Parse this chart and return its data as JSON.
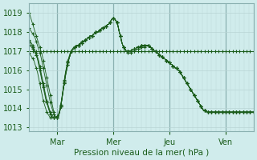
{
  "title": "",
  "xlabel": "Pression niveau de la mer( hPa )",
  "ylabel": "",
  "background_color": "#d0ecec",
  "plot_bg_color": "#d0ecec",
  "grid_color_major_x": "#8ab0b0",
  "grid_color_minor": "#b8d4d4",
  "line_color": "#1a5c1a",
  "ylim": [
    1012.8,
    1019.5
  ],
  "yticks": [
    1013,
    1014,
    1015,
    1016,
    1017,
    1018,
    1019
  ],
  "day_labels": [
    "Mar",
    "Mer",
    "Jeu",
    "Ven"
  ],
  "day_positions": [
    24,
    72,
    120,
    168
  ],
  "n_points": 193,
  "series": [
    [
      1019.0,
      1018.8,
      1018.6,
      1018.4,
      1018.2,
      1018.0,
      1017.8,
      1017.6,
      1017.4,
      1017.2,
      1017.0,
      1016.8,
      1016.5,
      1016.2,
      1015.9,
      1015.6,
      1015.3,
      1015.0,
      1014.7,
      1014.4,
      1014.1,
      1013.8,
      1013.6,
      1013.5,
      1013.5,
      1013.6,
      1013.8,
      1014.1,
      1014.5,
      1014.9,
      1015.3,
      1015.7,
      1016.0,
      1016.3,
      1016.6,
      1016.8,
      1017.0,
      1017.1,
      1017.2,
      1017.2,
      1017.3,
      1017.3,
      1017.3,
      1017.4,
      1017.4,
      1017.5,
      1017.5,
      1017.5,
      1017.6,
      1017.6,
      1017.7,
      1017.7,
      1017.8,
      1017.8,
      1017.8,
      1017.9,
      1017.9,
      1018.0,
      1018.0,
      1018.0,
      1018.1,
      1018.1,
      1018.2,
      1018.2,
      1018.2,
      1018.3,
      1018.3,
      1018.4,
      1018.4,
      1018.5,
      1018.6,
      1018.7,
      1018.7,
      1018.7,
      1018.6,
      1018.5,
      1018.3,
      1018.0,
      1017.8,
      1017.5,
      1017.3,
      1017.2,
      1017.1,
      1017.0,
      1017.0,
      1017.0,
      1017.0,
      1017.0,
      1017.1,
      1017.1,
      1017.1,
      1017.1,
      1017.2,
      1017.2,
      1017.2,
      1017.2,
      1017.3,
      1017.3,
      1017.3,
      1017.3,
      1017.3,
      1017.3,
      1017.3,
      1017.2,
      1017.2,
      1017.1,
      1017.1,
      1017.0,
      1017.0,
      1016.9,
      1016.9,
      1016.8,
      1016.8,
      1016.7,
      1016.7,
      1016.6,
      1016.6,
      1016.5,
      1016.5,
      1016.4,
      1016.4,
      1016.3,
      1016.3,
      1016.2,
      1016.2,
      1016.1,
      1016.1,
      1016.0,
      1016.0,
      1015.9,
      1015.8,
      1015.7,
      1015.6,
      1015.5,
      1015.4,
      1015.3,
      1015.2,
      1015.1,
      1015.0,
      1014.9,
      1014.8,
      1014.7,
      1014.6,
      1014.5,
      1014.4,
      1014.3,
      1014.2,
      1014.1,
      1014.0,
      1013.9,
      1013.9,
      1013.9,
      1013.8,
      1013.8,
      1013.8,
      1013.8,
      1013.8,
      1013.8,
      1013.8,
      1013.8,
      1013.8,
      1013.8,
      1013.8,
      1013.8,
      1013.8,
      1013.8,
      1013.8,
      1013.8,
      1013.8,
      1013.8,
      1013.8,
      1013.8,
      1013.8,
      1013.8,
      1013.8,
      1013.8,
      1013.8,
      1013.8,
      1013.8,
      1013.8,
      1013.8,
      1013.8,
      1013.8,
      1013.8,
      1013.8,
      1013.8,
      1013.8,
      1013.8,
      1013.8,
      1013.8,
      1013.8,
      1013.8,
      1013.8
    ],
    [
      1018.2,
      1018.1,
      1018.0,
      1017.9,
      1017.8,
      1017.7,
      1017.5,
      1017.3,
      1017.1,
      1016.9,
      1016.7,
      1016.4,
      1016.1,
      1015.8,
      1015.5,
      1015.2,
      1014.9,
      1014.6,
      1014.3,
      1014.1,
      1013.9,
      1013.7,
      1013.6,
      1013.5,
      1013.5,
      1013.6,
      1013.8,
      1014.1,
      1014.5,
      1014.9,
      1015.3,
      1015.7,
      1016.0,
      1016.3,
      1016.6,
      1016.8,
      1017.0,
      1017.1,
      1017.2,
      1017.2,
      1017.3,
      1017.3,
      1017.3,
      1017.4,
      1017.4,
      1017.5,
      1017.5,
      1017.5,
      1017.6,
      1017.6,
      1017.7,
      1017.7,
      1017.8,
      1017.8,
      1017.8,
      1017.9,
      1017.9,
      1018.0,
      1018.0,
      1018.0,
      1018.1,
      1018.1,
      1018.2,
      1018.2,
      1018.2,
      1018.3,
      1018.3,
      1018.4,
      1018.4,
      1018.5,
      1018.6,
      1018.7,
      1018.7,
      1018.7,
      1018.6,
      1018.5,
      1018.3,
      1018.0,
      1017.8,
      1017.5,
      1017.3,
      1017.2,
      1017.1,
      1017.0,
      1017.0,
      1017.0,
      1017.0,
      1017.0,
      1017.1,
      1017.1,
      1017.1,
      1017.1,
      1017.2,
      1017.2,
      1017.2,
      1017.2,
      1017.3,
      1017.3,
      1017.3,
      1017.3,
      1017.3,
      1017.3,
      1017.3,
      1017.2,
      1017.2,
      1017.1,
      1017.1,
      1017.0,
      1017.0,
      1016.9,
      1016.9,
      1016.8,
      1016.8,
      1016.7,
      1016.7,
      1016.6,
      1016.6,
      1016.5,
      1016.5,
      1016.4,
      1016.4,
      1016.3,
      1016.3,
      1016.2,
      1016.2,
      1016.1,
      1016.1,
      1016.0,
      1016.0,
      1015.9,
      1015.8,
      1015.7,
      1015.6,
      1015.5,
      1015.4,
      1015.3,
      1015.2,
      1015.1,
      1015.0,
      1014.9,
      1014.8,
      1014.7,
      1014.6,
      1014.5,
      1014.4,
      1014.3,
      1014.2,
      1014.1,
      1014.0,
      1013.9,
      1013.9,
      1013.9,
      1013.8,
      1013.8,
      1013.8,
      1013.8,
      1013.8,
      1013.8,
      1013.8,
      1013.8,
      1013.8,
      1013.8,
      1013.8,
      1013.8,
      1013.8,
      1013.8,
      1013.8,
      1013.8,
      1013.8,
      1013.8,
      1013.8,
      1013.8,
      1013.8,
      1013.8,
      1013.8,
      1013.8,
      1013.8,
      1013.8,
      1013.8,
      1013.8,
      1013.8,
      1013.8,
      1013.8,
      1013.8,
      1013.8,
      1013.8,
      1013.8,
      1013.8,
      1013.8,
      1013.8,
      1013.8,
      1013.8,
      1013.8
    ],
    [
      1017.5,
      1017.4,
      1017.3,
      1017.2,
      1017.1,
      1017.0,
      1016.9,
      1016.7,
      1016.5,
      1016.2,
      1015.9,
      1015.6,
      1015.3,
      1015.0,
      1014.7,
      1014.4,
      1014.2,
      1014.0,
      1013.8,
      1013.7,
      1013.6,
      1013.5,
      1013.5,
      1013.5,
      1013.5,
      1013.6,
      1013.8,
      1014.2,
      1014.6,
      1015.0,
      1015.4,
      1015.8,
      1016.1,
      1016.4,
      1016.6,
      1016.8,
      1017.0,
      1017.1,
      1017.1,
      1017.2,
      1017.2,
      1017.3,
      1017.3,
      1017.3,
      1017.4,
      1017.4,
      1017.5,
      1017.5,
      1017.6,
      1017.6,
      1017.7,
      1017.7,
      1017.8,
      1017.8,
      1017.8,
      1017.9,
      1017.9,
      1018.0,
      1018.0,
      1018.0,
      1018.1,
      1018.1,
      1018.2,
      1018.2,
      1018.2,
      1018.3,
      1018.3,
      1018.4,
      1018.4,
      1018.5,
      1018.6,
      1018.7,
      1018.7,
      1018.7,
      1018.6,
      1018.5,
      1018.3,
      1018.0,
      1017.8,
      1017.5,
      1017.3,
      1017.2,
      1017.1,
      1017.0,
      1017.0,
      1017.0,
      1017.0,
      1017.0,
      1017.1,
      1017.1,
      1017.1,
      1017.1,
      1017.2,
      1017.2,
      1017.2,
      1017.2,
      1017.3,
      1017.3,
      1017.3,
      1017.3,
      1017.3,
      1017.3,
      1017.3,
      1017.2,
      1017.2,
      1017.1,
      1017.1,
      1017.0,
      1017.0,
      1016.9,
      1016.9,
      1016.8,
      1016.8,
      1016.7,
      1016.7,
      1016.6,
      1016.6,
      1016.5,
      1016.5,
      1016.4,
      1016.4,
      1016.3,
      1016.3,
      1016.2,
      1016.2,
      1016.1,
      1016.1,
      1016.0,
      1016.0,
      1015.9,
      1015.8,
      1015.7,
      1015.6,
      1015.5,
      1015.4,
      1015.3,
      1015.2,
      1015.1,
      1015.0,
      1014.9,
      1014.8,
      1014.7,
      1014.6,
      1014.5,
      1014.4,
      1014.3,
      1014.2,
      1014.1,
      1014.0,
      1013.9,
      1013.9,
      1013.9,
      1013.8,
      1013.8,
      1013.8,
      1013.8,
      1013.8,
      1013.8,
      1013.8,
      1013.8,
      1013.8,
      1013.8,
      1013.8,
      1013.8,
      1013.8,
      1013.8,
      1013.8,
      1013.8,
      1013.8,
      1013.8,
      1013.8,
      1013.8,
      1013.8,
      1013.8,
      1013.8,
      1013.8,
      1013.8,
      1013.8,
      1013.8,
      1013.8,
      1013.8,
      1013.8,
      1013.8,
      1013.8,
      1013.8,
      1013.8,
      1013.8,
      1013.8,
      1013.8,
      1013.8,
      1013.8,
      1013.8,
      1013.8
    ],
    [
      1017.0,
      1017.0,
      1017.0,
      1017.0,
      1017.0,
      1017.0,
      1017.0,
      1017.0,
      1017.0,
      1017.0,
      1017.0,
      1017.0,
      1017.0,
      1017.0,
      1017.0,
      1017.0,
      1017.0,
      1017.0,
      1017.0,
      1017.0,
      1017.0,
      1017.0,
      1017.0,
      1017.0,
      1017.0,
      1017.0,
      1017.0,
      1017.0,
      1017.0,
      1017.0,
      1017.0,
      1017.0,
      1017.0,
      1017.0,
      1017.0,
      1017.0,
      1017.0,
      1017.0,
      1017.0,
      1017.0,
      1017.0,
      1017.0,
      1017.0,
      1017.0,
      1017.0,
      1017.0,
      1017.0,
      1017.0,
      1017.0,
      1017.0,
      1017.0,
      1017.0,
      1017.0,
      1017.0,
      1017.0,
      1017.0,
      1017.0,
      1017.0,
      1017.0,
      1017.0,
      1017.0,
      1017.0,
      1017.0,
      1017.0,
      1017.0,
      1017.0,
      1017.0,
      1017.0,
      1017.0,
      1017.0,
      1017.0,
      1017.0,
      1017.0,
      1017.0,
      1017.0,
      1017.0,
      1017.0,
      1017.0,
      1017.0,
      1017.0,
      1017.0,
      1017.0,
      1017.0,
      1017.0,
      1017.0,
      1017.0,
      1017.0,
      1017.0,
      1017.0,
      1017.0,
      1017.0,
      1017.0,
      1017.0,
      1017.0,
      1017.0,
      1017.0,
      1017.0,
      1017.0,
      1017.0,
      1017.0,
      1017.0,
      1017.0,
      1017.0,
      1017.0,
      1017.0,
      1017.0,
      1017.0,
      1017.0,
      1017.0,
      1017.0,
      1017.0,
      1017.0,
      1017.0,
      1017.0,
      1017.0,
      1017.0,
      1017.0,
      1017.0,
      1017.0,
      1017.0,
      1017.0,
      1017.0,
      1017.0,
      1017.0,
      1017.0,
      1017.0,
      1017.0,
      1017.0,
      1017.0,
      1017.0,
      1017.0,
      1017.0,
      1017.0,
      1017.0,
      1017.0,
      1017.0,
      1017.0,
      1017.0,
      1017.0,
      1017.0,
      1017.0,
      1017.0,
      1017.0,
      1017.0,
      1017.0,
      1017.0,
      1017.0,
      1017.0,
      1017.0,
      1017.0,
      1017.0,
      1017.0,
      1017.0,
      1017.0,
      1017.0,
      1017.0,
      1017.0,
      1017.0,
      1017.0,
      1017.0,
      1017.0,
      1017.0,
      1017.0,
      1017.0,
      1017.0,
      1017.0,
      1017.0,
      1017.0,
      1017.0,
      1017.0,
      1017.0,
      1017.0,
      1017.0,
      1017.0,
      1017.0,
      1017.0,
      1017.0,
      1017.0,
      1017.0,
      1017.0,
      1017.0,
      1017.0,
      1017.0,
      1017.0,
      1017.0,
      1017.0,
      1017.0,
      1017.0,
      1017.0,
      1017.0,
      1017.0,
      1017.0,
      1017.0
    ],
    [
      1017.3,
      1017.3,
      1017.2,
      1017.1,
      1017.0,
      1016.9,
      1016.8,
      1016.6,
      1016.4,
      1016.1,
      1015.8,
      1015.5,
      1015.2,
      1014.9,
      1014.6,
      1014.3,
      1014.1,
      1013.9,
      1013.7,
      1013.6,
      1013.5,
      1013.5,
      1013.5,
      1013.5,
      1013.6,
      1013.7,
      1013.9,
      1014.2,
      1014.6,
      1015.0,
      1015.4,
      1015.8,
      1016.1,
      1016.4,
      1016.6,
      1016.8,
      1017.0,
      1017.1,
      1017.1,
      1017.2,
      1017.2,
      1017.3,
      1017.3,
      1017.3,
      1017.4,
      1017.4,
      1017.5,
      1017.5,
      1017.6,
      1017.6,
      1017.7,
      1017.7,
      1017.8,
      1017.8,
      1017.8,
      1017.9,
      1017.9,
      1018.0,
      1018.0,
      1018.0,
      1018.1,
      1018.1,
      1018.2,
      1018.2,
      1018.2,
      1018.3,
      1018.3,
      1018.4,
      1018.4,
      1018.5,
      1018.6,
      1018.7,
      1018.7,
      1018.7,
      1018.6,
      1018.5,
      1018.3,
      1018.0,
      1017.8,
      1017.5,
      1017.3,
      1017.2,
      1017.1,
      1017.0,
      1016.9,
      1016.9,
      1016.9,
      1016.9,
      1017.0,
      1017.0,
      1017.0,
      1017.0,
      1017.1,
      1017.1,
      1017.1,
      1017.1,
      1017.2,
      1017.2,
      1017.2,
      1017.2,
      1017.3,
      1017.3,
      1017.3,
      1017.2,
      1017.2,
      1017.1,
      1017.1,
      1017.0,
      1017.0,
      1016.9,
      1016.9,
      1016.8,
      1016.8,
      1016.7,
      1016.7,
      1016.6,
      1016.6,
      1016.5,
      1016.5,
      1016.4,
      1016.4,
      1016.3,
      1016.3,
      1016.2,
      1016.2,
      1016.1,
      1016.1,
      1016.0,
      1016.0,
      1015.9,
      1015.8,
      1015.7,
      1015.6,
      1015.5,
      1015.4,
      1015.3,
      1015.2,
      1015.1,
      1015.0,
      1014.9,
      1014.8,
      1014.7,
      1014.6,
      1014.5,
      1014.4,
      1014.3,
      1014.2,
      1014.1,
      1014.0,
      1013.9,
      1013.9,
      1013.9,
      1013.8,
      1013.8,
      1013.8,
      1013.8,
      1013.8,
      1013.8,
      1013.8,
      1013.8,
      1013.8,
      1013.8,
      1013.8,
      1013.8,
      1013.8,
      1013.8,
      1013.8,
      1013.8,
      1013.8,
      1013.8,
      1013.8,
      1013.8,
      1013.8,
      1013.8,
      1013.8,
      1013.8,
      1013.8,
      1013.8,
      1013.8,
      1013.8,
      1013.8,
      1013.8,
      1013.8,
      1013.8,
      1013.8,
      1013.8,
      1013.8,
      1013.8,
      1013.8,
      1013.8,
      1013.8,
      1013.8,
      1013.8
    ],
    [
      1017.6,
      1017.5,
      1017.4,
      1017.3,
      1017.1,
      1017.0,
      1016.8,
      1016.6,
      1016.3,
      1016.0,
      1015.7,
      1015.4,
      1015.1,
      1014.8,
      1014.5,
      1014.3,
      1014.1,
      1013.9,
      1013.7,
      1013.6,
      1013.5,
      1013.5,
      1013.5,
      1013.5,
      1013.5,
      1013.6,
      1013.8,
      1014.1,
      1014.5,
      1015.0,
      1015.4,
      1015.8,
      1016.1,
      1016.4,
      1016.6,
      1016.8,
      1017.0,
      1017.1,
      1017.1,
      1017.2,
      1017.2,
      1017.3,
      1017.3,
      1017.3,
      1017.4,
      1017.4,
      1017.5,
      1017.5,
      1017.6,
      1017.6,
      1017.7,
      1017.7,
      1017.8,
      1017.8,
      1017.8,
      1017.9,
      1017.9,
      1018.0,
      1018.0,
      1018.0,
      1018.1,
      1018.1,
      1018.2,
      1018.2,
      1018.2,
      1018.3,
      1018.3,
      1018.4,
      1018.4,
      1018.5,
      1018.6,
      1018.7,
      1018.7,
      1018.7,
      1018.6,
      1018.5,
      1018.3,
      1018.0,
      1017.8,
      1017.5,
      1017.3,
      1017.2,
      1017.1,
      1017.0,
      1017.0,
      1017.0,
      1017.0,
      1017.0,
      1017.1,
      1017.1,
      1017.1,
      1017.1,
      1017.2,
      1017.2,
      1017.2,
      1017.2,
      1017.3,
      1017.3,
      1017.3,
      1017.3,
      1017.3,
      1017.3,
      1017.3,
      1017.2,
      1017.2,
      1017.1,
      1017.1,
      1017.0,
      1017.0,
      1016.9,
      1016.9,
      1016.8,
      1016.8,
      1016.7,
      1016.7,
      1016.6,
      1016.6,
      1016.5,
      1016.5,
      1016.4,
      1016.4,
      1016.3,
      1016.3,
      1016.2,
      1016.2,
      1016.1,
      1016.1,
      1016.0,
      1016.0,
      1015.9,
      1015.8,
      1015.7,
      1015.6,
      1015.5,
      1015.4,
      1015.3,
      1015.2,
      1015.1,
      1015.0,
      1014.9,
      1014.8,
      1014.7,
      1014.6,
      1014.5,
      1014.4,
      1014.3,
      1014.2,
      1014.1,
      1014.0,
      1013.9,
      1013.9,
      1013.9,
      1013.8,
      1013.8,
      1013.8,
      1013.8,
      1013.8,
      1013.8,
      1013.8,
      1013.8,
      1013.8,
      1013.8,
      1013.8,
      1013.8,
      1013.8,
      1013.8,
      1013.8,
      1013.8,
      1013.8,
      1013.8,
      1013.8,
      1013.8,
      1013.8,
      1013.8,
      1013.8,
      1013.8,
      1013.8,
      1013.8,
      1013.8,
      1013.8,
      1013.8,
      1013.8,
      1013.8,
      1013.8,
      1013.8,
      1013.8,
      1013.8,
      1013.8,
      1013.8,
      1013.8,
      1013.8,
      1013.8,
      1013.8
    ],
    [
      1016.9,
      1016.8,
      1016.7,
      1016.6,
      1016.5,
      1016.3,
      1016.1,
      1015.9,
      1015.6,
      1015.3,
      1015.0,
      1014.7,
      1014.4,
      1014.2,
      1014.0,
      1013.8,
      1013.7,
      1013.6,
      1013.5,
      1013.5,
      1013.5,
      1013.5,
      1013.5,
      1013.5,
      1013.5,
      1013.6,
      1013.8,
      1014.1,
      1014.5,
      1015.0,
      1015.5,
      1015.9,
      1016.2,
      1016.5,
      1016.7,
      1016.9,
      1017.0,
      1017.1,
      1017.1,
      1017.2,
      1017.2,
      1017.3,
      1017.3,
      1017.3,
      1017.4,
      1017.4,
      1017.5,
      1017.5,
      1017.6,
      1017.6,
      1017.7,
      1017.7,
      1017.8,
      1017.8,
      1017.8,
      1017.9,
      1017.9,
      1018.0,
      1018.0,
      1018.0,
      1018.1,
      1018.1,
      1018.2,
      1018.2,
      1018.2,
      1018.3,
      1018.3,
      1018.4,
      1018.4,
      1018.5,
      1018.6,
      1018.7,
      1018.7,
      1018.7,
      1018.6,
      1018.5,
      1018.3,
      1018.0,
      1017.8,
      1017.5,
      1017.3,
      1017.2,
      1017.1,
      1017.0,
      1017.0,
      1017.0,
      1017.0,
      1017.0,
      1017.1,
      1017.1,
      1017.1,
      1017.1,
      1017.2,
      1017.2,
      1017.2,
      1017.2,
      1017.3,
      1017.3,
      1017.3,
      1017.3,
      1017.3,
      1017.3,
      1017.3,
      1017.2,
      1017.2,
      1017.1,
      1017.1,
      1017.0,
      1017.0,
      1016.9,
      1016.9,
      1016.8,
      1016.8,
      1016.7,
      1016.7,
      1016.6,
      1016.6,
      1016.5,
      1016.5,
      1016.4,
      1016.4,
      1016.3,
      1016.3,
      1016.2,
      1016.2,
      1016.1,
      1016.1,
      1016.0,
      1016.0,
      1015.9,
      1015.8,
      1015.7,
      1015.6,
      1015.5,
      1015.4,
      1015.3,
      1015.2,
      1015.1,
      1015.0,
      1014.9,
      1014.8,
      1014.7,
      1014.6,
      1014.5,
      1014.4,
      1014.3,
      1014.2,
      1014.1,
      1014.0,
      1013.9,
      1013.9,
      1013.9,
      1013.8,
      1013.8,
      1013.8,
      1013.8,
      1013.8,
      1013.8,
      1013.8,
      1013.8,
      1013.8,
      1013.8,
      1013.8,
      1013.8,
      1013.8,
      1013.8,
      1013.8,
      1013.8,
      1013.8,
      1013.8,
      1013.8,
      1013.8,
      1013.8,
      1013.8,
      1013.8,
      1013.8,
      1013.8,
      1013.8,
      1013.8,
      1013.8,
      1013.8,
      1013.8,
      1013.8,
      1013.8,
      1013.8,
      1013.8,
      1013.8,
      1013.8,
      1013.8,
      1013.8,
      1013.8,
      1013.8,
      1013.8
    ]
  ]
}
